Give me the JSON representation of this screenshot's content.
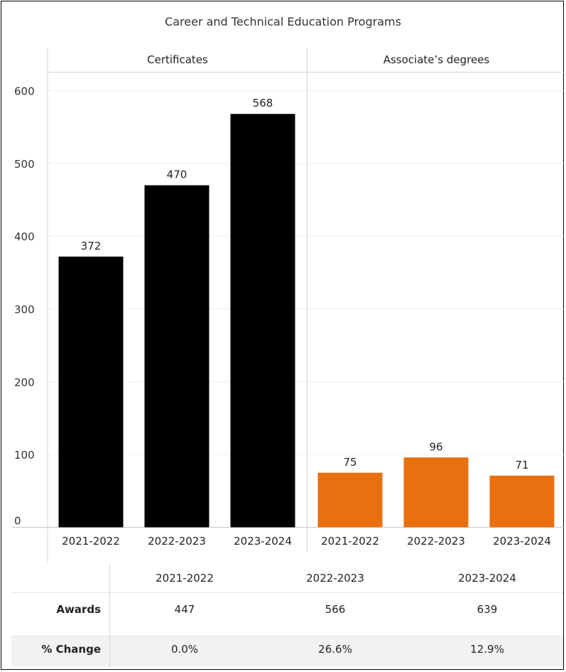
{
  "chart_data": {
    "type": "bar",
    "title": "Career and Technical Education Programs",
    "ylim": [
      0,
      600
    ],
    "yticks": [
      0,
      100,
      200,
      300,
      400,
      500,
      600
    ],
    "categories": [
      "2021-2022",
      "2022-2023",
      "2023-2024"
    ],
    "panels": [
      {
        "name": "Certificates",
        "values": [
          372,
          470,
          568
        ],
        "value_labels": [
          "372",
          "470",
          "568"
        ],
        "color": "#000000"
      },
      {
        "name": "Associate’s degrees",
        "values": [
          75,
          96,
          71
        ],
        "value_labels": [
          "75",
          "96",
          "71"
        ],
        "color": "#E8700F"
      }
    ],
    "grid": true
  },
  "table": {
    "columns": [
      "2021-2022",
      "2022-2023",
      "2023-2024"
    ],
    "rows": [
      {
        "label": "Awards",
        "values": [
          "447",
          "566",
          "639"
        ]
      },
      {
        "label": "% Change",
        "values": [
          "0.0%",
          "26.6%",
          "12.9%"
        ]
      }
    ],
    "stripe_color": "#F2F2F2"
  }
}
